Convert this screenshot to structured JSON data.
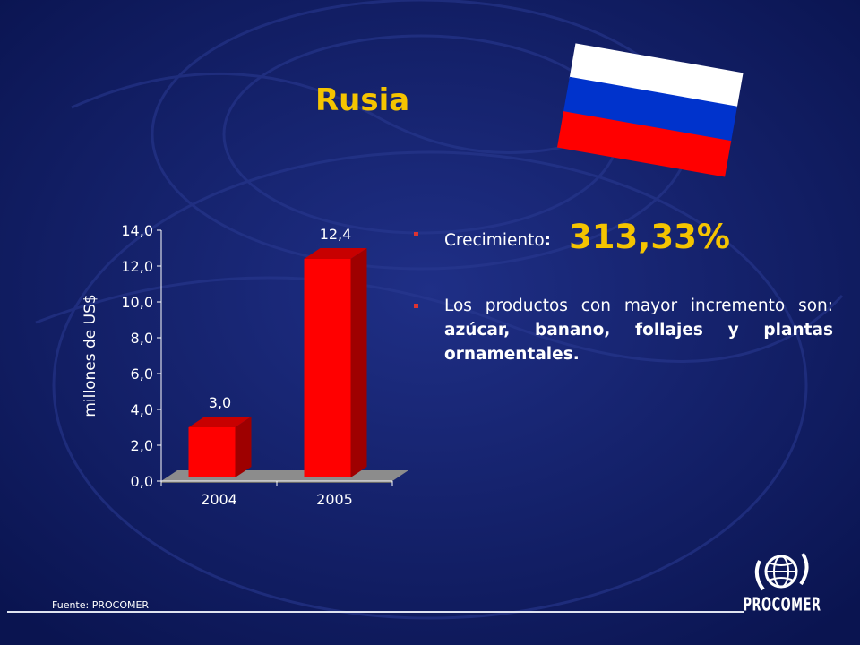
{
  "slide": {
    "title": "Rusia",
    "source": "Fuente: PROCOMER",
    "logo_text": "PROCOMER"
  },
  "bullets": {
    "growth_label": "Crecimiento",
    "growth_colon": ":",
    "growth_value": "313,33%",
    "products_intro": "Los productos con mayor incremento son: ",
    "products_list": "azúcar, banano, follajes y plantas ornamentales."
  },
  "flag": {
    "colors": [
      "#ffffff",
      "#0033cc",
      "#ff0000"
    ]
  },
  "chart_data": {
    "type": "bar",
    "categories": [
      "2004",
      "2005"
    ],
    "values": [
      3.0,
      12.4
    ],
    "value_labels": [
      "3,0",
      "12,4"
    ],
    "ylabel": "millones de US$",
    "ylim": [
      0,
      14
    ],
    "yticks": [
      0,
      2,
      4,
      6,
      8,
      10,
      12,
      14
    ],
    "ytick_labels": [
      "0,0",
      "2,0",
      "4,0",
      "6,0",
      "8,0",
      "10,0",
      "12,0",
      "14,0"
    ],
    "bar_color": "#ff0000",
    "grid": false,
    "legend": "none"
  }
}
